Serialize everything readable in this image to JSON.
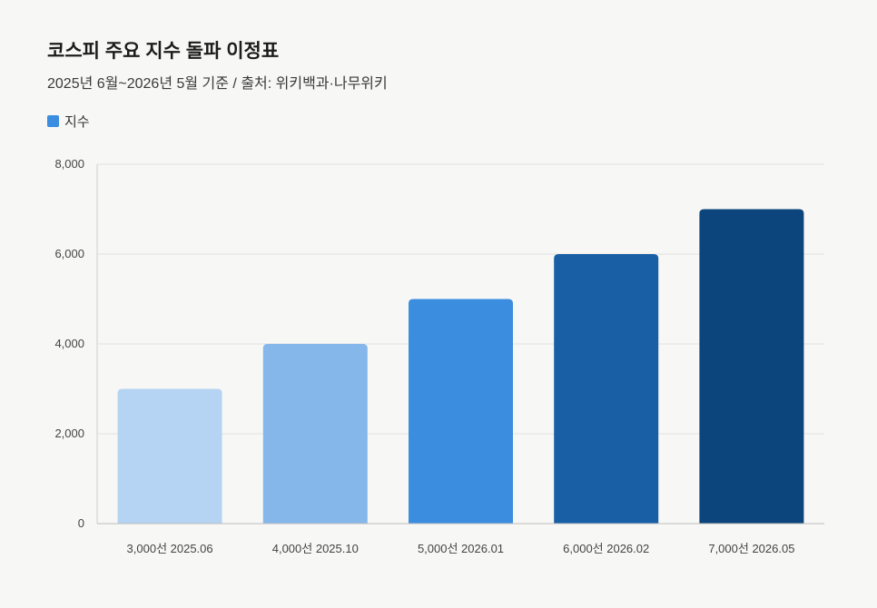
{
  "header": {
    "title": "코스피 주요 지수 돌파 이정표",
    "subtitle": "2025년 6월~2026년 5월 기준 / 출처: 위키백과·나무위키"
  },
  "legend": {
    "label": "지수",
    "color": "#3b8ddf"
  },
  "chart_data": {
    "type": "bar",
    "title": "코스피 주요 지수 돌파 이정표",
    "subtitle": "2025년 6월~2026년 5월 기준 / 출처: 위키백과·나무위키",
    "categories": [
      "3,000선 2025.06",
      "4,000선 2025.10",
      "5,000선 2026.01",
      "6,000선 2026.02",
      "7,000선 2026.05"
    ],
    "series": [
      {
        "name": "지수",
        "values": [
          3000,
          4000,
          5000,
          6000,
          7000
        ]
      }
    ],
    "bar_colors": [
      "#b5d4f3",
      "#85b7eb",
      "#3b8ddf",
      "#185fa5",
      "#0c447c"
    ],
    "ylim": [
      0,
      8000
    ],
    "yticks": [
      0,
      2000,
      4000,
      6000,
      8000
    ],
    "ytick_labels": [
      "0",
      "2,000",
      "4,000",
      "6,000",
      "8,000"
    ],
    "grid": true,
    "legend_position": "top-left"
  }
}
